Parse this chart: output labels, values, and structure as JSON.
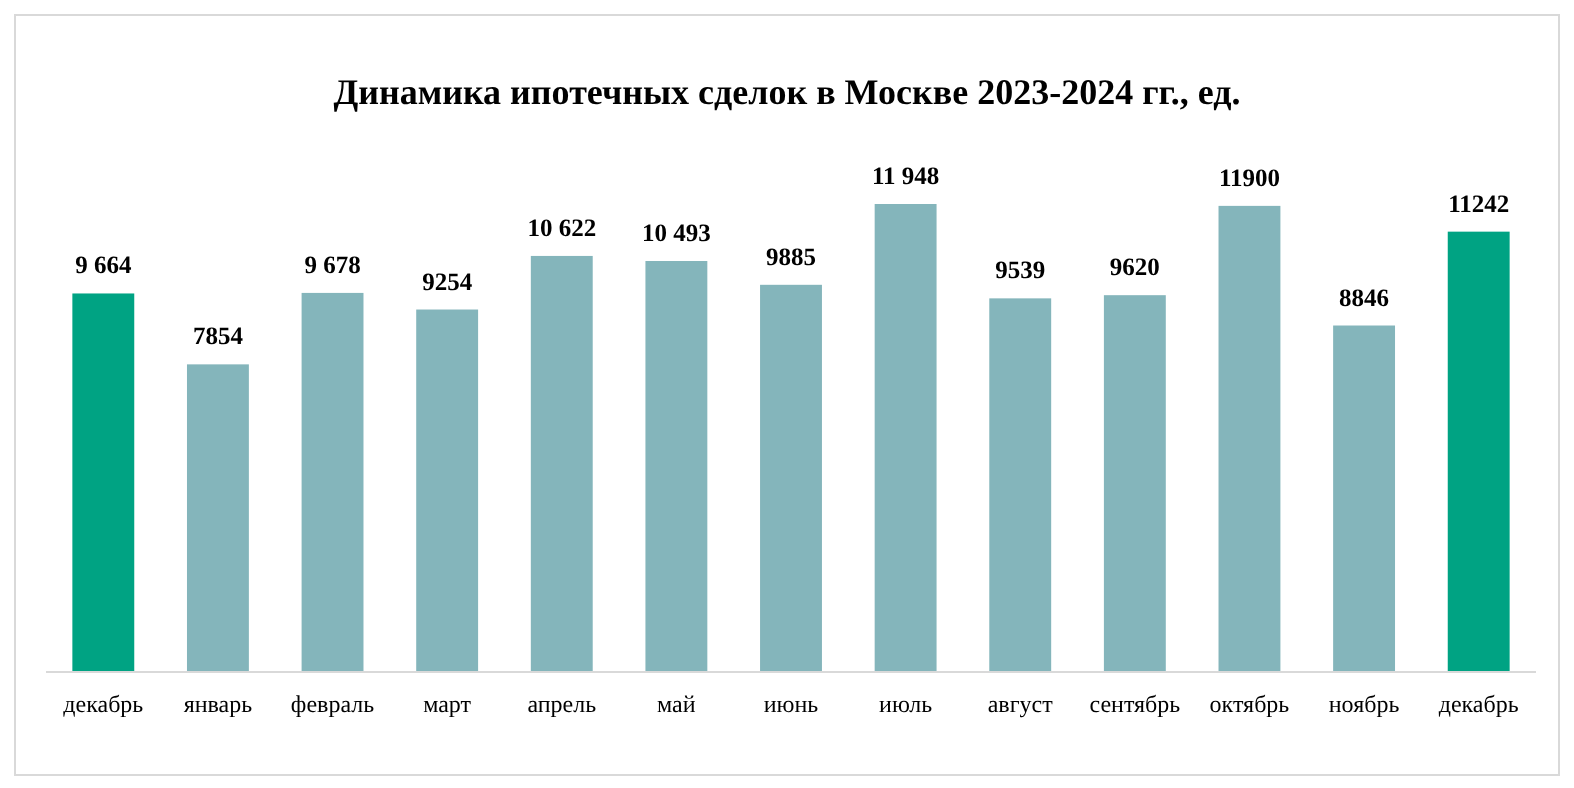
{
  "chart_data": {
    "type": "bar",
    "title": "Динамика ипотечных сделок в Москве 2023-2024 гг., ед.",
    "categories": [
      "декабрь",
      "январь",
      "февраль",
      "март",
      "апрель",
      "май",
      "июнь",
      "июль",
      "август",
      "сентябрь",
      "октябрь",
      "ноябрь",
      "декабрь"
    ],
    "values": [
      9664,
      7854,
      9678,
      9254,
      10622,
      10493,
      9885,
      11948,
      9539,
      9620,
      11900,
      8846,
      11242
    ],
    "colors": [
      "#00a383",
      "#84b5bb",
      "#84b5bb",
      "#84b5bb",
      "#84b5bb",
      "#84b5bb",
      "#84b5bb",
      "#84b5bb",
      "#84b5bb",
      "#84b5bb",
      "#84b5bb",
      "#84b5bb",
      "#00a383"
    ],
    "value_labels": [
      "9 664",
      "7854",
      "9 678",
      "9254",
      "10 622",
      "10 493",
      "9885",
      "11 948",
      "9539",
      "9620",
      "11900",
      "8846",
      "11242"
    ]
  }
}
